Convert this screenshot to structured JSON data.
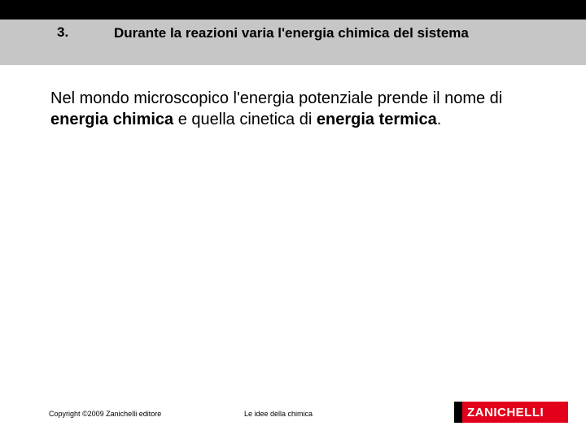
{
  "header": {
    "number": "3.",
    "title": "Durante la reazioni varia l'energia chimica del sistema"
  },
  "body": {
    "text_pre": "Nel mondo microscopico l'energia potenziale prende il nome di ",
    "bold1": "energia chimica",
    "text_mid": " e quella cinetica di ",
    "bold2": "energia termica",
    "text_end": "."
  },
  "footer": {
    "copyright": "Copyright ©2009 Zanichelli editore",
    "book": "Le idee della chimica",
    "logo": "ZANICHELLI"
  },
  "colors": {
    "header_bg": "#c6c6c6",
    "logo_bg": "#e2001a",
    "text": "#000000",
    "logo_text": "#ffffff"
  }
}
